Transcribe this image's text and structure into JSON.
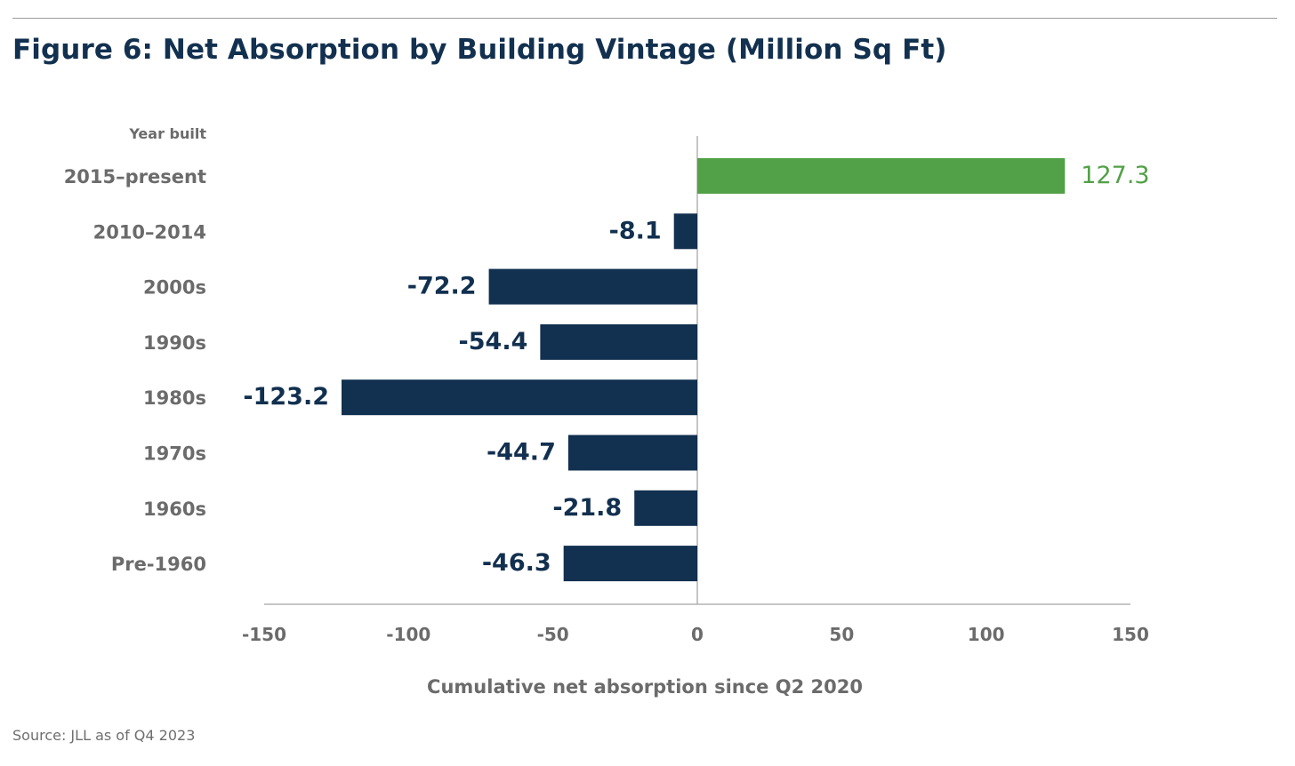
{
  "figure": {
    "title": "Figure 6: Net Absorption by Building Vintage (Million Sq Ft)",
    "source": "Source: JLL as of Q4 2023"
  },
  "colors": {
    "negative": "#12304f",
    "positive": "#52a047",
    "category_text": "#6b6b6b",
    "axis_text": "#6b6b6b",
    "axis_line": "#b4b4b4"
  },
  "chart_data": {
    "type": "bar",
    "orientation": "horizontal",
    "category_header": "Year built",
    "categories": [
      "2015–present",
      "2010–2014",
      "2000s",
      "1990s",
      "1980s",
      "1970s",
      "1960s",
      "Pre-1960"
    ],
    "values": [
      127.3,
      -8.1,
      -72.2,
      -54.4,
      -123.2,
      -44.7,
      -21.8,
      -46.3
    ],
    "value_labels": [
      "127.3",
      "-8.1",
      "-72.2",
      "-54.4",
      "-123.2",
      "-44.7",
      "-21.8",
      "-46.3"
    ],
    "xlabel": "Cumulative net absorption since Q2 2020",
    "xlim": [
      -150,
      150
    ],
    "xticks": [
      -150,
      -100,
      -50,
      0,
      50,
      100,
      150
    ],
    "xtick_labels": [
      "-150",
      "-100",
      "-50",
      "0",
      "50",
      "100",
      "150"
    ],
    "grid": false
  }
}
